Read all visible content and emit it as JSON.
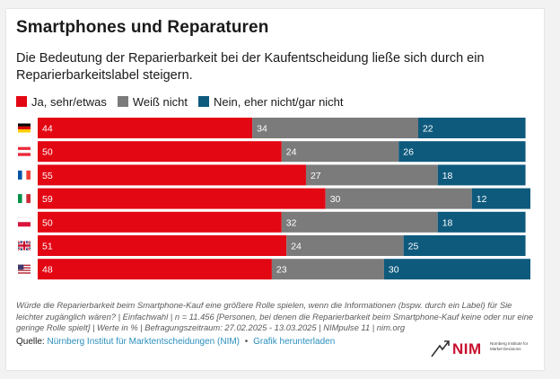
{
  "title": "Smartphones und Reparaturen",
  "subtitle": "Die Bedeutung der Reparierbarkeit bei der Kaufentscheidung ließe sich durch ein Reparierbarkeitslabel steigern.",
  "colors": {
    "ja": "#e30613",
    "weiss": "#7b7b7b",
    "nein": "#0e5a7d"
  },
  "chart_data": {
    "type": "bar",
    "orientation": "horizontal",
    "stacked": true,
    "categories": [
      "Deutschland",
      "Österreich",
      "Frankreich",
      "Italien",
      "Polen",
      "Großbritannien",
      "USA"
    ],
    "category_icons": [
      "flag-de-icon",
      "flag-at-icon",
      "flag-fr-icon",
      "flag-it-icon",
      "flag-pl-icon",
      "flag-gb-icon",
      "flag-us-icon"
    ],
    "series": [
      {
        "name": "Ja, sehr/etwas",
        "color": "#e30613",
        "values": [
          44,
          50,
          55,
          59,
          50,
          51,
          48
        ]
      },
      {
        "name": "Weiß nicht",
        "color": "#7b7b7b",
        "values": [
          34,
          24,
          27,
          30,
          32,
          24,
          23
        ]
      },
      {
        "name": "Nein, eher nicht/gar nicht",
        "color": "#0e5a7d",
        "values": [
          22,
          26,
          18,
          12,
          18,
          25,
          30
        ]
      }
    ],
    "xlim": [
      0,
      101
    ],
    "legend_position": "top-left",
    "grid": false
  },
  "note": "Würde die Reparierbarkeit beim Smartphone-Kauf eine größere Rolle spielen, wenn die Informationen (bspw. durch ein Label) für Sie leichter zugänglich wären? | Einfachwahl | n = 11.456 [Personen, bei denen die Reparierbarkeit beim Smartphone-Kauf keine oder nur eine geringe Rolle spielt] | Werte in % | Befragungszeitraum: 27.02.2025 - 13.03.2025 | NIMpulse 11 | nim.org",
  "source": {
    "label": "Quelle:",
    "link": "Nürnberg Institut für Marktentscheidungen (NIM)",
    "separator": "•",
    "download": "Grafik herunterladen"
  },
  "logo": {
    "text": "NIM",
    "sub": "Nürnberg Institute for Market Decisions"
  }
}
